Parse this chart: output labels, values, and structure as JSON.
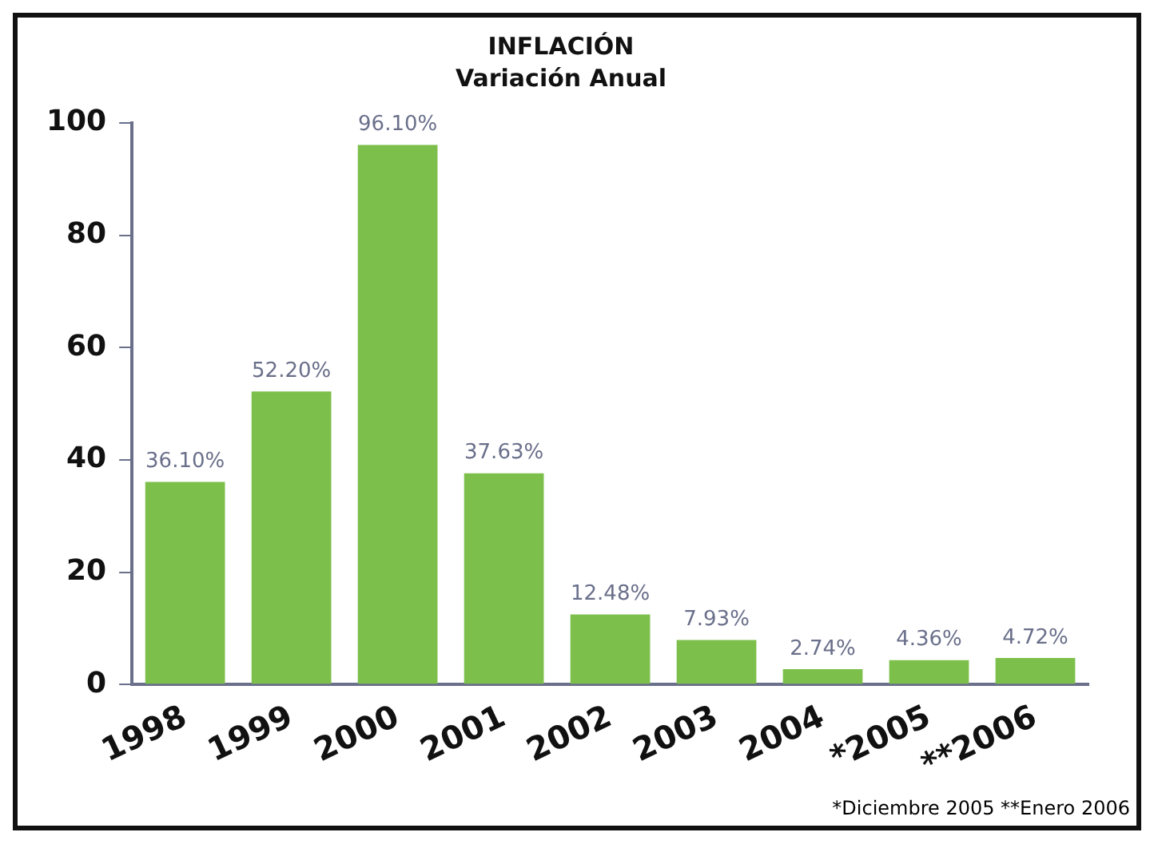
{
  "chart_data": {
    "type": "bar",
    "title": "INFLACIÓN",
    "subtitle": "Variación Anual",
    "categories": [
      "1998",
      "1999",
      "2000",
      "2001",
      "2002",
      "2003",
      "2004",
      "*2005",
      "**2006"
    ],
    "values": [
      36.1,
      52.2,
      96.1,
      37.63,
      12.48,
      7.93,
      2.74,
      4.36,
      4.72
    ],
    "value_labels": [
      "36.10%",
      "52.20%",
      "96.10%",
      "37.63%",
      "12.48%",
      "7.93%",
      "2.74%",
      "4.36%",
      "4.72%"
    ],
    "color": "#7cc04b",
    "ylim": [
      0,
      100
    ],
    "yticks": [
      0,
      20,
      40,
      60,
      80,
      100
    ],
    "grid": false,
    "legend": false,
    "annotations": [
      "*Diciembre 2005 **Enero 2006"
    ]
  }
}
